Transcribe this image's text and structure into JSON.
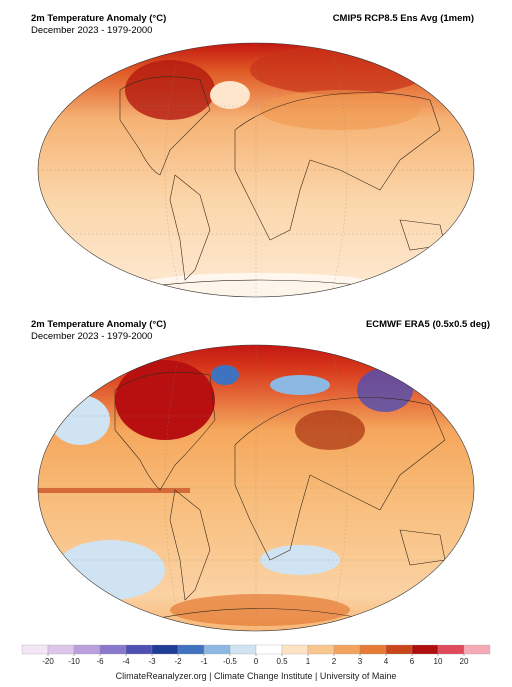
{
  "panels": [
    {
      "title": "2m Temperature Anomaly (°C)",
      "subtitle": "December 2023 - 1979-2000",
      "source": "CMIP5 RCP8.5 Ens Avg (1mem)"
    },
    {
      "title": "2m Temperature Anomaly (°C)",
      "subtitle": "December 2023 - 1979-2000",
      "source": "ECMWF ERA5 (0.5x0.5 deg)"
    }
  ],
  "colorbar": {
    "ticks": [
      -20,
      -10,
      -6,
      -4,
      -3,
      -2,
      -1,
      -0.5,
      0,
      0.5,
      1,
      2,
      3,
      4,
      6,
      10,
      20
    ],
    "colors": [
      "#f3e6f5",
      "#dcc6ea",
      "#b9a0dc",
      "#8a78cc",
      "#4f4fb4",
      "#1f3c96",
      "#3f73c0",
      "#8db8e2",
      "#cfe3f3",
      "#ffffff",
      "#fde2c4",
      "#f9c690",
      "#f3a35e",
      "#e57b34",
      "#c9461d",
      "#b00f0f",
      "#e04b5c",
      "#f5aab5"
    ]
  },
  "footer": "ClimateReanalyzer.org | Climate Change Institute | University of Maine"
}
